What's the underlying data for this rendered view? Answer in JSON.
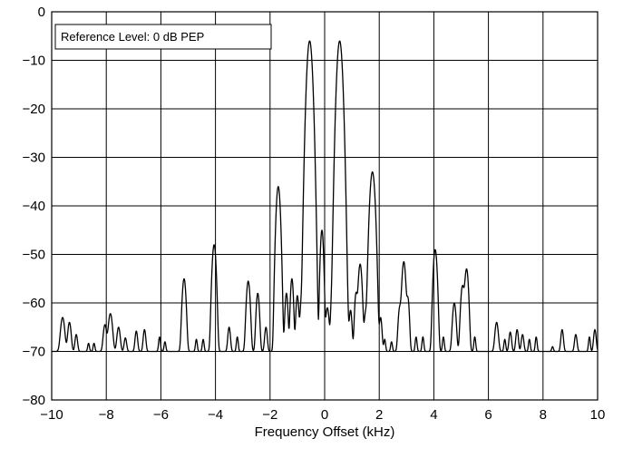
{
  "chart_data": {
    "type": "line",
    "title": "",
    "xlabel": "Frequency Offset (kHz)",
    "ylabel": "",
    "xlim": [
      -10,
      10
    ],
    "ylim": [
      -80,
      0
    ],
    "xticks": [
      -10,
      -8,
      -6,
      -4,
      -2,
      0,
      2,
      4,
      6,
      8,
      10
    ],
    "yticks": [
      0,
      -10,
      -20,
      -30,
      -40,
      -50,
      -60,
      -70,
      -80
    ],
    "xtick_labels": [
      "−10",
      "−8",
      "−6",
      "−4",
      "−2",
      "0",
      "2",
      "4",
      "6",
      "8",
      "10"
    ],
    "ytick_labels": [
      "0",
      "−10",
      "−20",
      "−30",
      "−40",
      "−50",
      "−60",
      "−70",
      "−80"
    ],
    "grid": true,
    "annotation": "Reference Level: 0 dB PEP",
    "floor_db": -70,
    "peaks": [
      [
        -9.6,
        -63,
        0.06
      ],
      [
        -9.35,
        -64,
        0.05
      ],
      [
        -9.1,
        -66.5,
        0.04
      ],
      [
        -8.65,
        -68.3,
        0.03
      ],
      [
        -8.45,
        -68.3,
        0.03
      ],
      [
        -8.05,
        -64.5,
        0.05
      ],
      [
        -7.85,
        -62.2,
        0.06
      ],
      [
        -7.55,
        -65,
        0.05
      ],
      [
        -7.3,
        -67.2,
        0.04
      ],
      [
        -6.9,
        -65.8,
        0.04
      ],
      [
        -6.6,
        -65.5,
        0.04
      ],
      [
        -6.05,
        -67,
        0.03
      ],
      [
        -5.85,
        -68,
        0.03
      ],
      [
        -5.15,
        -55,
        0.05
      ],
      [
        -4.7,
        -67.5,
        0.03
      ],
      [
        -4.45,
        -67.5,
        0.03
      ],
      [
        -4.05,
        -48,
        0.05
      ],
      [
        -3.5,
        -65,
        0.04
      ],
      [
        -3.2,
        -67,
        0.03
      ],
      [
        -2.8,
        -55.5,
        0.05
      ],
      [
        -2.45,
        -58,
        0.045
      ],
      [
        -2.15,
        -65,
        0.04
      ],
      [
        -1.7,
        -36,
        0.05
      ],
      [
        -1.4,
        -58,
        0.04
      ],
      [
        -1.2,
        -55,
        0.04
      ],
      [
        -1.0,
        -58.5,
        0.04
      ],
      [
        -0.85,
        -59.5,
        0.04
      ],
      [
        -0.55,
        -6,
        0.06
      ],
      [
        -0.35,
        -55,
        0.04
      ],
      [
        -0.1,
        -45,
        0.04
      ],
      [
        0.1,
        -61,
        0.05
      ],
      [
        0.28,
        -58,
        0.04
      ],
      [
        0.55,
        -6,
        0.06
      ],
      [
        0.8,
        -59,
        0.04
      ],
      [
        0.95,
        -61.5,
        0.04
      ],
      [
        1.15,
        -58,
        0.04
      ],
      [
        1.3,
        -52,
        0.05
      ],
      [
        1.5,
        -62,
        0.04
      ],
      [
        1.75,
        -33,
        0.06
      ],
      [
        2.05,
        -63,
        0.04
      ],
      [
        2.2,
        -67.5,
        0.03
      ],
      [
        2.45,
        -68,
        0.03
      ],
      [
        2.75,
        -61,
        0.045
      ],
      [
        2.9,
        -51.5,
        0.05
      ],
      [
        3.05,
        -59,
        0.04
      ],
      [
        3.35,
        -67,
        0.03
      ],
      [
        3.6,
        -67,
        0.03
      ],
      [
        4.05,
        -49,
        0.05
      ],
      [
        4.35,
        -67,
        0.03
      ],
      [
        4.75,
        -60,
        0.05
      ],
      [
        5.05,
        -56.5,
        0.05
      ],
      [
        5.2,
        -53,
        0.05
      ],
      [
        5.5,
        -67,
        0.03
      ],
      [
        6.3,
        -64,
        0.05
      ],
      [
        6.6,
        -67.5,
        0.03
      ],
      [
        6.8,
        -66,
        0.04
      ],
      [
        7.05,
        -65.5,
        0.04
      ],
      [
        7.25,
        -66.5,
        0.04
      ],
      [
        7.5,
        -67.5,
        0.03
      ],
      [
        7.75,
        -67,
        0.03
      ],
      [
        8.35,
        -69,
        0.03
      ],
      [
        8.7,
        -65.5,
        0.04
      ],
      [
        9.2,
        -66.5,
        0.04
      ],
      [
        9.7,
        -67,
        0.03
      ],
      [
        9.9,
        -65.5,
        0.04
      ]
    ]
  }
}
